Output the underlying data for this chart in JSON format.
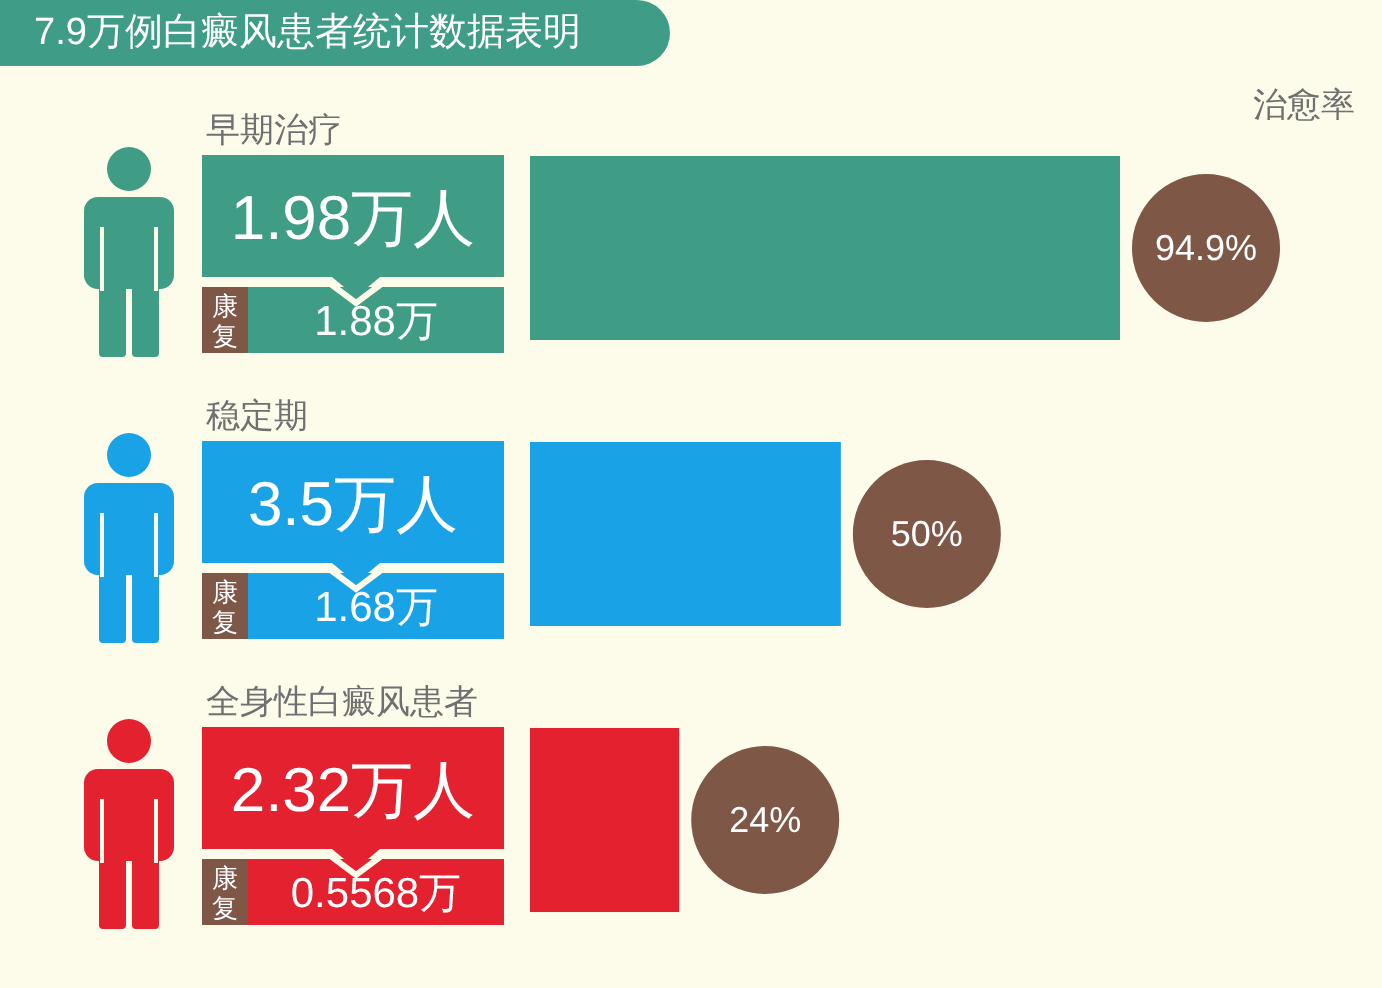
{
  "chart_data": {
    "type": "bar",
    "orientation": "horizontal",
    "title": "7.9万例白癜风患者统计数据表明",
    "xlabel": "治愈率",
    "categories": [
      "早期治疗",
      "稳定期",
      "全身性白癜风患者"
    ],
    "values": [
      94.9,
      50,
      24
    ],
    "colors": [
      "#3f9c85",
      "#19a3e6",
      "#e4222f"
    ],
    "value_labels": [
      "94.9%",
      "50%",
      "24%"
    ],
    "tick_labels": "y",
    "annotations": [
      "1.98万人",
      "康复",
      "1.88万",
      "3.5万人",
      "康复",
      "1.68万",
      "2.32万人",
      "康复",
      "0.5568万"
    ]
  }
}
